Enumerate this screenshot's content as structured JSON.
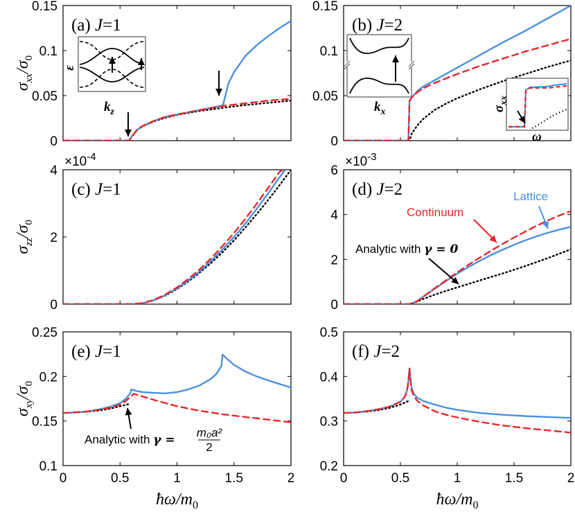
{
  "colors": {
    "lattice": "#4a90e2",
    "continuum": "#e8262a",
    "analytic": "#000000",
    "continuum_label": "#e8262a",
    "lattice_label": "#4a90e2"
  },
  "x_axis_label": "ħω/m",
  "x_axis_label_sub": "0",
  "chart_data": [
    {
      "id": "a",
      "type": "line",
      "label": "(a)",
      "J_text": "J",
      "J_value": "=1",
      "ylabel_main": "σ",
      "ylabel_sub": "xx",
      "ylabel_den": "/σ",
      "ylabel_den_sub": "0",
      "xlim": [
        0,
        2
      ],
      "ylim": [
        0,
        0.15
      ],
      "xticks": [
        0,
        0.5,
        1,
        1.5,
        2
      ],
      "xtick_labels": [
        "",
        "",
        "",
        "",
        ""
      ],
      "yticks": [
        0,
        0.05,
        0.1,
        0.15
      ],
      "ytick_labels": [
        "0",
        "0.05",
        "0.1",
        "0.15"
      ],
      "series": [
        {
          "name": "Lattice",
          "style": "solid",
          "x": [
            0,
            0.58,
            0.6,
            0.65,
            0.7,
            0.8,
            0.9,
            1.0,
            1.1,
            1.2,
            1.3,
            1.4,
            1.41,
            1.45,
            1.5,
            1.6,
            1.7,
            1.8,
            1.9,
            2.0
          ],
          "y": [
            0,
            0,
            0.004,
            0.012,
            0.0165,
            0.022,
            0.0265,
            0.029,
            0.0315,
            0.034,
            0.0365,
            0.039,
            0.0425,
            0.063,
            0.076,
            0.094,
            0.106,
            0.116,
            0.125,
            0.133
          ]
        },
        {
          "name": "Continuum",
          "style": "dashed",
          "x": [
            0,
            0.58,
            0.6,
            0.65,
            0.7,
            0.8,
            0.9,
            1.0,
            1.2,
            1.4,
            1.6,
            1.8,
            2.0
          ],
          "y": [
            0,
            0,
            0.004,
            0.012,
            0.0165,
            0.022,
            0.0265,
            0.029,
            0.034,
            0.0385,
            0.0415,
            0.0445,
            0.0465
          ]
        },
        {
          "name": "Analytic",
          "style": "dotted",
          "x": [
            0,
            0.58,
            0.6,
            0.65,
            0.7,
            0.8,
            0.9,
            1.0,
            1.2,
            1.4,
            1.6,
            1.8,
            2.0
          ],
          "y": [
            0,
            0,
            0.004,
            0.012,
            0.016,
            0.0215,
            0.0255,
            0.0285,
            0.033,
            0.0365,
            0.0395,
            0.042,
            0.0445
          ]
        }
      ],
      "arrows": [
        {
          "x": 0.58,
          "y": 0.029
        },
        {
          "x": 1.37,
          "y": 0.07
        }
      ],
      "inset": {
        "type": "bands",
        "xlabel_main": "k",
        "xlabel_sub": "z",
        "ylabel": "ε"
      }
    },
    {
      "id": "b",
      "type": "line",
      "label": "(b)",
      "J_text": "J",
      "J_value": "=2",
      "xlim": [
        0,
        2
      ],
      "ylim": [
        0,
        0.15
      ],
      "xticks": [
        0,
        0.5,
        1,
        1.5,
        2
      ],
      "xtick_labels": [
        "",
        "",
        "",
        "",
        ""
      ],
      "yticks": [
        0,
        0.05,
        0.1,
        0.15
      ],
      "ytick_labels": [
        "0",
        "0.05",
        "0.1",
        "0.15"
      ],
      "series": [
        {
          "name": "Lattice",
          "style": "solid",
          "x": [
            0,
            0.57,
            0.58,
            0.6,
            0.65,
            0.7,
            0.8,
            0.9,
            1.0,
            1.2,
            1.4,
            1.6,
            1.8,
            2.0
          ],
          "y": [
            0,
            0,
            0.044,
            0.048,
            0.055,
            0.06,
            0.067,
            0.074,
            0.081,
            0.095,
            0.109,
            0.122,
            0.136,
            0.15
          ]
        },
        {
          "name": "Continuum",
          "style": "dashed",
          "x": [
            0,
            0.57,
            0.58,
            0.6,
            0.65,
            0.7,
            0.8,
            0.9,
            1.0,
            1.2,
            1.4,
            1.6,
            1.8,
            2.0
          ],
          "y": [
            0,
            0,
            0.044,
            0.048,
            0.054,
            0.058,
            0.064,
            0.069,
            0.074,
            0.083,
            0.091,
            0.099,
            0.106,
            0.113
          ]
        },
        {
          "name": "Analytic",
          "style": "dotted",
          "x": [
            0,
            0.58,
            0.6,
            0.65,
            0.7,
            0.8,
            0.9,
            1.0,
            1.2,
            1.4,
            1.6,
            1.8,
            2.0
          ],
          "y": [
            0,
            0,
            0.008,
            0.017,
            0.024,
            0.034,
            0.041,
            0.047,
            0.057,
            0.066,
            0.074,
            0.082,
            0.089
          ]
        }
      ],
      "inset": {
        "type": "bands",
        "xlabel_main": "k",
        "xlabel_sub": "x"
      },
      "inset2": {
        "type": "zoom",
        "xlabel": "ω",
        "ylabel_main": "σ",
        "ylabel_sub": "xx"
      }
    },
    {
      "id": "c",
      "type": "line",
      "label": "(c)",
      "J_text": "J",
      "J_value": "=1",
      "ylabel_main": "σ",
      "ylabel_sub": "zz",
      "ylabel_den": "/σ",
      "ylabel_den_sub": "0",
      "scale_prefix": "×10",
      "scale_exp": "-4",
      "xlim": [
        0,
        2
      ],
      "ylim": [
        0,
        4
      ],
      "xticks": [
        0,
        0.5,
        1,
        1.5,
        2
      ],
      "xtick_labels": [
        "",
        "",
        "",
        "",
        ""
      ],
      "yticks": [
        0,
        2,
        4
      ],
      "ytick_labels": [
        "0",
        "2",
        "4"
      ],
      "series": [
        {
          "name": "Lattice",
          "style": "solid",
          "x": [
            0,
            0.6,
            0.7,
            0.8,
            0.9,
            1.0,
            1.1,
            1.2,
            1.3,
            1.4,
            1.5,
            1.6,
            1.7,
            1.8,
            1.9,
            1.95
          ],
          "y": [
            0,
            0,
            0.03,
            0.12,
            0.27,
            0.47,
            0.71,
            0.98,
            1.29,
            1.63,
            2.0,
            2.4,
            2.84,
            3.3,
            3.78,
            4.0
          ]
        },
        {
          "name": "Continuum",
          "style": "dashed",
          "x": [
            0,
            0.6,
            0.7,
            0.8,
            0.9,
            1.0,
            1.1,
            1.2,
            1.3,
            1.4,
            1.5,
            1.6,
            1.7,
            1.8,
            1.9,
            1.93
          ],
          "y": [
            0,
            0,
            0.03,
            0.13,
            0.29,
            0.5,
            0.75,
            1.04,
            1.37,
            1.73,
            2.12,
            2.54,
            2.99,
            3.46,
            3.94,
            4.0
          ]
        },
        {
          "name": "Analytic",
          "style": "dotted",
          "x": [
            0,
            0.6,
            0.7,
            0.8,
            0.9,
            1.0,
            1.1,
            1.2,
            1.3,
            1.4,
            1.5,
            1.6,
            1.7,
            1.8,
            1.9,
            2.0
          ],
          "y": [
            0,
            0,
            0.03,
            0.12,
            0.26,
            0.45,
            0.68,
            0.94,
            1.23,
            1.55,
            1.9,
            2.28,
            2.68,
            3.1,
            3.54,
            4.0
          ]
        }
      ]
    },
    {
      "id": "d",
      "type": "line",
      "label": "(d)",
      "J_text": "J",
      "J_value": "=2",
      "scale_prefix": "×10",
      "scale_exp": "-3",
      "xlim": [
        0,
        2
      ],
      "ylim": [
        0,
        6
      ],
      "xticks": [
        0,
        0.5,
        1,
        1.5,
        2
      ],
      "xtick_labels": [
        "",
        "",
        "",
        "",
        ""
      ],
      "yticks": [
        0,
        2,
        4,
        6
      ],
      "ytick_labels": [
        "0",
        "2",
        "4",
        "6"
      ],
      "series": [
        {
          "name": "Lattice",
          "style": "solid",
          "x": [
            0,
            0.58,
            0.65,
            0.7,
            0.8,
            0.9,
            1.0,
            1.1,
            1.2,
            1.3,
            1.4,
            1.5,
            1.6,
            1.7,
            1.8,
            1.9,
            2.0
          ],
          "y": [
            0,
            0,
            0.14,
            0.33,
            0.68,
            1.03,
            1.36,
            1.66,
            1.94,
            2.2,
            2.43,
            2.65,
            2.85,
            3.03,
            3.19,
            3.33,
            3.45
          ]
        },
        {
          "name": "Continuum",
          "style": "dashed",
          "x": [
            0,
            0.58,
            0.65,
            0.7,
            0.8,
            0.9,
            1.0,
            1.1,
            1.2,
            1.3,
            1.4,
            1.5,
            1.6,
            1.7,
            1.8,
            1.9,
            2.0
          ],
          "y": [
            0,
            0,
            0.14,
            0.33,
            0.7,
            1.06,
            1.42,
            1.76,
            2.08,
            2.39,
            2.69,
            2.97,
            3.24,
            3.5,
            3.74,
            3.96,
            4.15
          ]
        },
        {
          "name": "Analytic",
          "style": "dotted",
          "x": [
            0,
            0.58,
            0.6,
            0.7,
            0.8,
            0.9,
            1.0,
            1.2,
            1.4,
            1.6,
            1.8,
            2.0
          ],
          "y": [
            0,
            0,
            0.02,
            0.23,
            0.42,
            0.59,
            0.75,
            1.06,
            1.37,
            1.7,
            2.06,
            2.45
          ]
        }
      ],
      "legend": {
        "continuum": "Continuum",
        "lattice": "Lattice",
        "analytic_text": "Analytic with ",
        "analytic_gamma": "γ = 0"
      }
    },
    {
      "id": "e",
      "type": "line",
      "label": "(e)",
      "J_text": "J",
      "J_value": "=1",
      "ylabel_main": "σ",
      "ylabel_sub": "xy",
      "ylabel_den": "/σ",
      "ylabel_den_sub": "0",
      "xlim": [
        0,
        2
      ],
      "ylim": [
        0.1,
        0.25
      ],
      "xticks": [
        0,
        0.5,
        1,
        1.5,
        2
      ],
      "xtick_labels": [
        "0",
        "0.5",
        "1",
        "1.5",
        "2"
      ],
      "yticks": [
        0.1,
        0.15,
        0.2,
        0.25
      ],
      "ytick_labels": [
        "0.1",
        "0.15",
        "0.2",
        "0.25"
      ],
      "series": [
        {
          "name": "Lattice",
          "style": "solid",
          "x": [
            0,
            0.1,
            0.2,
            0.3,
            0.4,
            0.5,
            0.55,
            0.59,
            0.6,
            0.65,
            0.7,
            0.8,
            0.9,
            1.0,
            1.1,
            1.2,
            1.3,
            1.35,
            1.39,
            1.4,
            1.45,
            1.5,
            1.6,
            1.7,
            1.8,
            1.9,
            2.0
          ],
          "y": [
            0.159,
            0.1595,
            0.1605,
            0.1625,
            0.1655,
            0.17,
            0.175,
            0.181,
            0.1855,
            0.1835,
            0.1825,
            0.1815,
            0.181,
            0.1825,
            0.1855,
            0.19,
            0.1975,
            0.2035,
            0.212,
            0.2245,
            0.2185,
            0.213,
            0.2055,
            0.2,
            0.1955,
            0.1915,
            0.1875
          ]
        },
        {
          "name": "Continuum",
          "style": "dashed",
          "x": [
            0,
            0.2,
            0.4,
            0.5,
            0.55,
            0.6,
            0.62,
            0.7,
            0.8,
            0.9,
            1.0,
            1.2,
            1.4,
            1.6,
            1.8,
            2.0
          ],
          "y": [
            0.159,
            0.1605,
            0.1645,
            0.1685,
            0.1725,
            0.178,
            0.1805,
            0.1775,
            0.1735,
            0.17,
            0.1665,
            0.1615,
            0.1575,
            0.1545,
            0.1515,
            0.1485
          ]
        },
        {
          "name": "Analytic",
          "style": "dotted",
          "x": [
            0,
            0.1,
            0.2,
            0.3,
            0.4,
            0.5,
            0.58
          ],
          "y": [
            0.159,
            0.1595,
            0.1605,
            0.1615,
            0.1635,
            0.1665,
            0.169
          ]
        }
      ],
      "annotation": {
        "text": "Analytic with ",
        "gamma": "γ = ",
        "numerator": "m₀a²",
        "denominator": "2"
      }
    },
    {
      "id": "f",
      "type": "line",
      "label": "(f)",
      "J_text": "J",
      "J_value": "=2",
      "xlim": [
        0,
        2
      ],
      "ylim": [
        0.2,
        0.5
      ],
      "xticks": [
        0,
        0.5,
        1,
        1.5,
        2
      ],
      "xtick_labels": [
        "0",
        "0.5",
        "1",
        "1.5",
        "2"
      ],
      "yticks": [
        0.2,
        0.3,
        0.4,
        0.5
      ],
      "ytick_labels": [
        "0.2",
        "0.3",
        "0.4",
        "0.5"
      ],
      "series": [
        {
          "name": "Lattice",
          "style": "solid",
          "x": [
            0,
            0.1,
            0.2,
            0.3,
            0.4,
            0.5,
            0.54,
            0.56,
            0.57,
            0.58,
            0.59,
            0.6,
            0.62,
            0.65,
            0.7,
            0.8,
            0.9,
            1.0,
            1.2,
            1.4,
            1.6,
            1.8,
            2.0
          ],
          "y": [
            0.318,
            0.319,
            0.322,
            0.326,
            0.332,
            0.343,
            0.355,
            0.37,
            0.39,
            0.418,
            0.39,
            0.372,
            0.36,
            0.352,
            0.345,
            0.337,
            0.33,
            0.325,
            0.318,
            0.314,
            0.311,
            0.309,
            0.307
          ]
        },
        {
          "name": "Continuum",
          "style": "dashed",
          "x": [
            0,
            0.1,
            0.2,
            0.3,
            0.4,
            0.5,
            0.54,
            0.56,
            0.57,
            0.58,
            0.59,
            0.6,
            0.62,
            0.65,
            0.7,
            0.8,
            0.9,
            1.0,
            1.2,
            1.4,
            1.6,
            1.8,
            2.0
          ],
          "y": [
            0.318,
            0.319,
            0.322,
            0.326,
            0.332,
            0.343,
            0.355,
            0.37,
            0.39,
            0.418,
            0.385,
            0.368,
            0.355,
            0.345,
            0.335,
            0.322,
            0.314,
            0.308,
            0.298,
            0.29,
            0.284,
            0.279,
            0.274
          ]
        },
        {
          "name": "Analytic",
          "style": "dotted",
          "x": [
            0,
            0.1,
            0.2,
            0.3,
            0.4,
            0.5,
            0.58
          ],
          "y": [
            0.318,
            0.319,
            0.321,
            0.324,
            0.329,
            0.337,
            0.346
          ]
        }
      ]
    }
  ]
}
